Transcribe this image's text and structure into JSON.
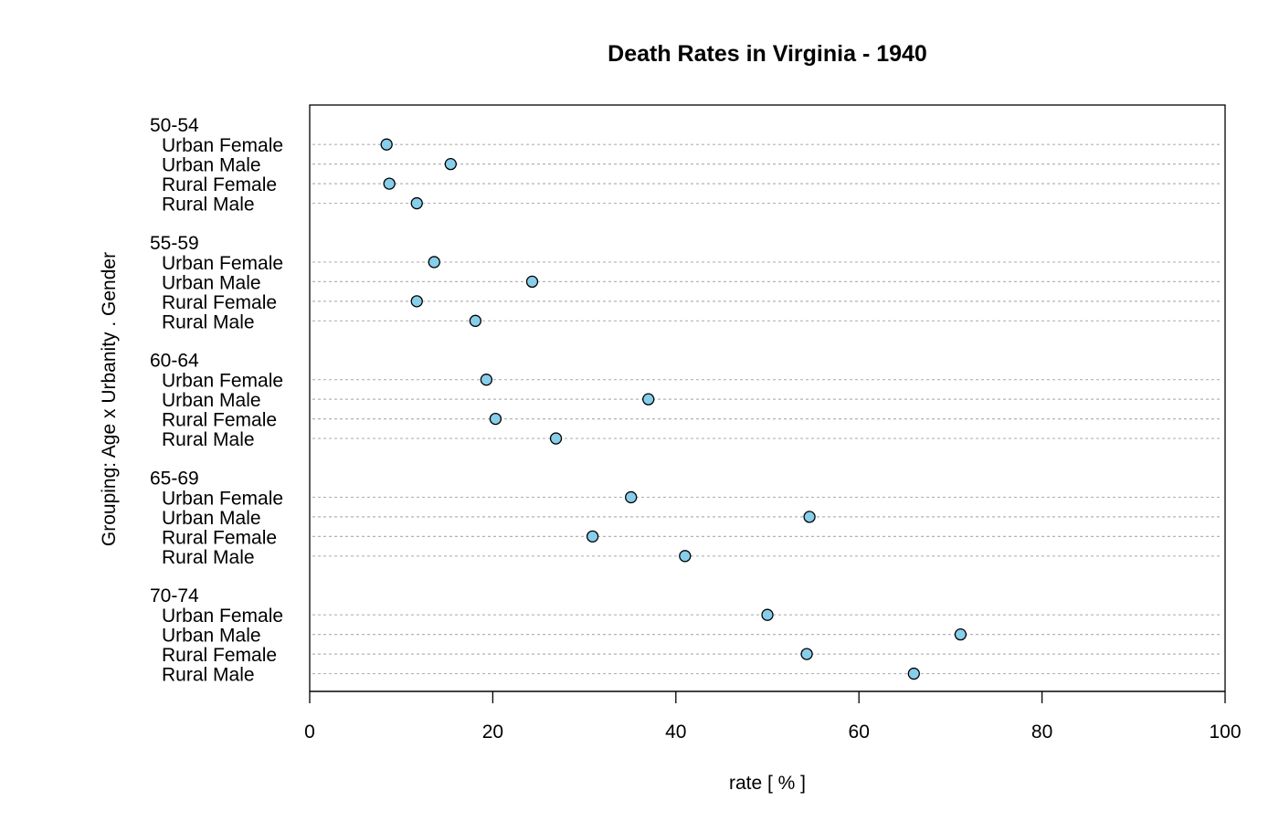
{
  "chart_data": {
    "type": "scatter",
    "subtype": "dotchart",
    "title": "Death Rates in Virginia - 1940",
    "xlabel": "rate [ % ]",
    "ylabel": "Grouping: Age x Urbanity . Gender",
    "xlim": [
      0,
      100
    ],
    "xticks": [
      "0",
      "20",
      "40",
      "60",
      "80",
      "100"
    ],
    "grid": "horizontal dotted guide lines",
    "point_color": "#87CEEB",
    "point_stroke": "#000000",
    "categories": [
      "Urban Female",
      "Urban Male",
      "Rural Female",
      "Rural Male"
    ],
    "groups": [
      {
        "label": "50-54",
        "values": [
          8.4,
          15.4,
          8.7,
          11.7
        ]
      },
      {
        "label": "55-59",
        "values": [
          13.6,
          24.3,
          11.7,
          18.1
        ]
      },
      {
        "label": "60-64",
        "values": [
          19.3,
          37.0,
          20.3,
          26.9
        ]
      },
      {
        "label": "65-69",
        "values": [
          35.1,
          54.6,
          30.9,
          41.0
        ]
      },
      {
        "label": "70-74",
        "values": [
          50.0,
          71.1,
          54.3,
          66.0
        ]
      }
    ]
  }
}
